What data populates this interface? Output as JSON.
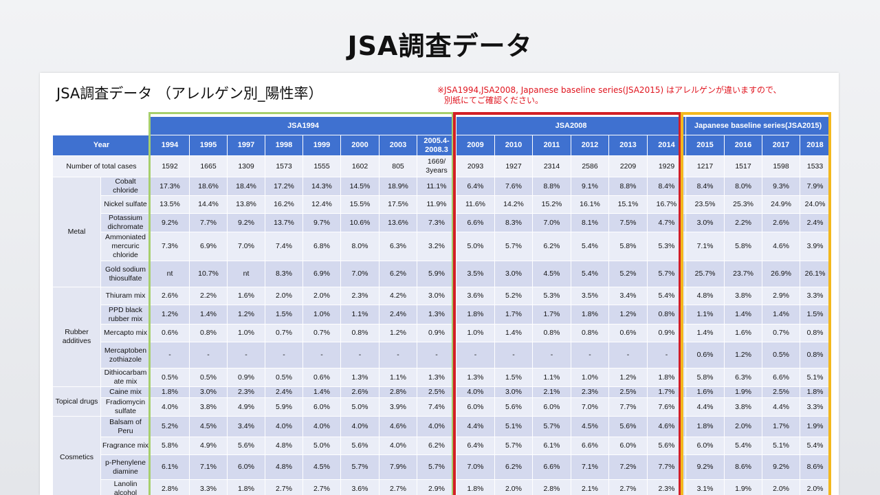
{
  "slide_title": "JSA調査データ",
  "sub_title": "JSA調査データ （アレルゲン別_陽性率）",
  "note_line1": "※JSA1994,JSA2008, Japanese baseline series(JSA2015) はアレルゲンが違いますので、",
  "note_line2": "別紙にてご確認ください。",
  "groups": {
    "g1": "JSA1994",
    "g2": "JSA2008",
    "g3": "Japanese baseline series(JSA2015)"
  },
  "colors": {
    "header": "#3f71d0",
    "jsa1994": "#a7cf6d",
    "jsa2008": "#d21f26",
    "jsa2015": "#f3b81d",
    "note": "#e0141e"
  },
  "year_label": "Year",
  "years": [
    "1994",
    "1995",
    "1997",
    "1998",
    "1999",
    "2000",
    "2003",
    "2005.4-2008.3",
    "2009",
    "2010",
    "2011",
    "2012",
    "2013",
    "2014",
    "2015",
    "2016",
    "2017",
    "2018"
  ],
  "total_label": "Number of total cases",
  "totals": [
    "1592",
    "1665",
    "1309",
    "1573",
    "1555",
    "1602",
    "805",
    "1669/ 3years",
    "2093",
    "1927",
    "2314",
    "2586",
    "2209",
    "1929",
    "1217",
    "1517",
    "1598",
    "1533"
  ],
  "categories": [
    {
      "name": "Metal",
      "rows": [
        {
          "name": "Cobalt chloride",
          "values": [
            "17.3%",
            "18.6%",
            "18.4%",
            "17.2%",
            "14.3%",
            "14.5%",
            "18.9%",
            "11.1%",
            "6.4%",
            "7.6%",
            "8.8%",
            "9.1%",
            "8.8%",
            "8.4%",
            "8.4%",
            "8.0%",
            "9.3%",
            "7.9%"
          ]
        },
        {
          "name": "Nickel sulfate",
          "values": [
            "13.5%",
            "14.4%",
            "13.8%",
            "16.2%",
            "12.4%",
            "15.5%",
            "17.5%",
            "11.9%",
            "11.6%",
            "14.2%",
            "15.2%",
            "16.1%",
            "15.1%",
            "16.7%",
            "23.5%",
            "25.3%",
            "24.9%",
            "24.0%"
          ]
        },
        {
          "name": "Potassium dichromate",
          "values": [
            "9.2%",
            "7.7%",
            "9.2%",
            "13.7%",
            "9.7%",
            "10.6%",
            "13.6%",
            "7.3%",
            "6.6%",
            "8.3%",
            "7.0%",
            "8.1%",
            "7.5%",
            "4.7%",
            "3.0%",
            "2.2%",
            "2.6%",
            "2.4%"
          ]
        },
        {
          "name": "Ammoniated mercuric chloride",
          "values": [
            "7.3%",
            "6.9%",
            "7.0%",
            "7.4%",
            "6.8%",
            "8.0%",
            "6.3%",
            "3.2%",
            "5.0%",
            "5.7%",
            "6.2%",
            "5.4%",
            "5.8%",
            "5.3%",
            "7.1%",
            "5.8%",
            "4.6%",
            "3.9%"
          ]
        },
        {
          "name": "Gold sodium thiosulfate",
          "values": [
            "nt",
            "10.7%",
            "nt",
            "8.3%",
            "6.9%",
            "7.0%",
            "6.2%",
            "5.9%",
            "3.5%",
            "3.0%",
            "4.5%",
            "5.4%",
            "5.2%",
            "5.7%",
            "25.7%",
            "23.7%",
            "26.9%",
            "26.1%"
          ]
        }
      ]
    },
    {
      "name": "Rubber additives",
      "rows": [
        {
          "name": "Thiuram mix",
          "values": [
            "2.6%",
            "2.2%",
            "1.6%",
            "2.0%",
            "2.0%",
            "2.3%",
            "4.2%",
            "3.0%",
            "3.6%",
            "5.2%",
            "5.3%",
            "3.5%",
            "3.4%",
            "5.4%",
            "4.8%",
            "3.8%",
            "2.9%",
            "3.3%"
          ]
        },
        {
          "name": "PPD black rubber mix",
          "values": [
            "1.2%",
            "1.4%",
            "1.2%",
            "1.5%",
            "1.0%",
            "1.1%",
            "2.4%",
            "1.3%",
            "1.8%",
            "1.7%",
            "1.7%",
            "1.8%",
            "1.2%",
            "0.8%",
            "1.1%",
            "1.4%",
            "1.4%",
            "1.5%"
          ]
        },
        {
          "name": "Mercapto mix",
          "values": [
            "0.6%",
            "0.8%",
            "1.0%",
            "0.7%",
            "0.7%",
            "0.8%",
            "1.2%",
            "0.9%",
            "1.0%",
            "1.4%",
            "0.8%",
            "0.8%",
            "0.6%",
            "0.9%",
            "1.4%",
            "1.6%",
            "0.7%",
            "0.8%"
          ]
        },
        {
          "name": "Mercaptoben zothiazole",
          "values": [
            "-",
            "-",
            "-",
            "-",
            "-",
            "-",
            "-",
            "-",
            "-",
            "-",
            "-",
            "-",
            "-",
            "-",
            "0.6%",
            "1.2%",
            "0.5%",
            "0.8%"
          ]
        },
        {
          "name": "Dithiocarbam ate mix",
          "values": [
            "0.5%",
            "0.5%",
            "0.9%",
            "0.5%",
            "0.6%",
            "1.3%",
            "1.1%",
            "1.3%",
            "1.3%",
            "1.5%",
            "1.1%",
            "1.0%",
            "1.2%",
            "1.8%",
            "5.8%",
            "6.3%",
            "6.6%",
            "5.1%"
          ]
        }
      ]
    },
    {
      "name": "Topical drugs",
      "rows": [
        {
          "name": "Caine mix",
          "values": [
            "1.8%",
            "3.0%",
            "2.3%",
            "2.4%",
            "1.4%",
            "2.6%",
            "2.8%",
            "2.5%",
            "4.0%",
            "3.0%",
            "2.1%",
            "2.3%",
            "2.5%",
            "1.7%",
            "1.6%",
            "1.9%",
            "2.5%",
            "1.8%"
          ]
        },
        {
          "name": "Fradiomycin sulfate",
          "values": [
            "4.0%",
            "3.8%",
            "4.9%",
            "5.9%",
            "6.0%",
            "5.0%",
            "3.9%",
            "7.4%",
            "6.0%",
            "5.6%",
            "6.0%",
            "7.0%",
            "7.7%",
            "7.6%",
            "4.4%",
            "3.8%",
            "4.4%",
            "3.3%"
          ]
        }
      ]
    },
    {
      "name": "Cosmetics",
      "rows": [
        {
          "name": "Balsam of Peru",
          "values": [
            "5.2%",
            "4.5%",
            "3.4%",
            "4.0%",
            "4.0%",
            "4.0%",
            "4.6%",
            "4.0%",
            "4.4%",
            "5.1%",
            "5.7%",
            "4.5%",
            "5.6%",
            "4.6%",
            "1.8%",
            "2.0%",
            "1.7%",
            "1.9%"
          ]
        },
        {
          "name": "Fragrance mix",
          "values": [
            "5.8%",
            "4.9%",
            "5.6%",
            "4.8%",
            "5.0%",
            "5.6%",
            "4.0%",
            "6.2%",
            "6.4%",
            "5.7%",
            "6.1%",
            "6.6%",
            "6.0%",
            "5.6%",
            "6.0%",
            "5.4%",
            "5.1%",
            "5.4%"
          ]
        },
        {
          "name": "p-Phenylene diamine",
          "values": [
            "6.1%",
            "7.1%",
            "6.0%",
            "4.8%",
            "4.5%",
            "5.7%",
            "7.9%",
            "5.7%",
            "7.0%",
            "6.2%",
            "6.6%",
            "7.1%",
            "7.2%",
            "7.7%",
            "9.2%",
            "8.6%",
            "9.2%",
            "8.6%"
          ]
        },
        {
          "name": "Lanolin alcohol",
          "values": [
            "2.8%",
            "3.3%",
            "1.8%",
            "2.7%",
            "2.7%",
            "3.6%",
            "2.7%",
            "2.9%",
            "1.8%",
            "2.0%",
            "2.8%",
            "2.1%",
            "2.7%",
            "2.3%",
            "3.1%",
            "1.9%",
            "2.0%",
            "2.0%"
          ]
        }
      ]
    }
  ]
}
